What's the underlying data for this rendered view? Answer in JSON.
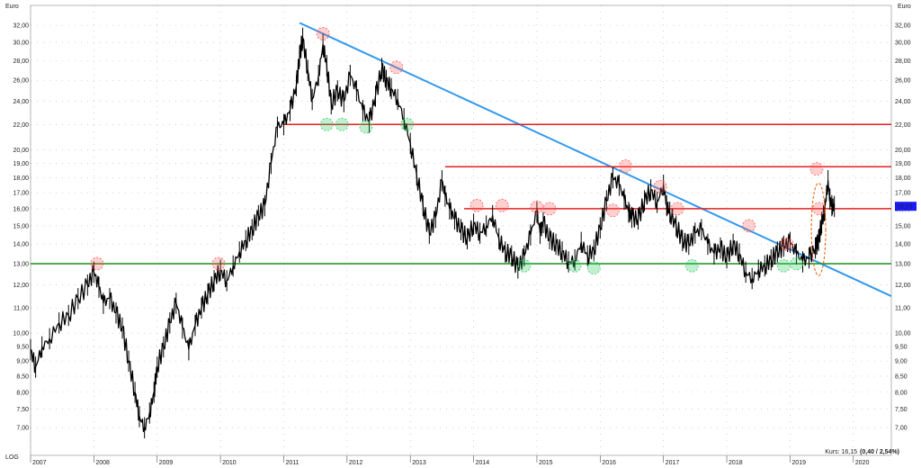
{
  "chart_data": {
    "type": "line",
    "scale": "log",
    "y_unit_label": "Euro",
    "log_label": "LOG",
    "ylim": [
      6.3,
      34.5
    ],
    "y_ticks": [
      7,
      7.5,
      8,
      8.5,
      9,
      9.5,
      10,
      11,
      12,
      13,
      14,
      15,
      16,
      17,
      18,
      19,
      20,
      22,
      24,
      26,
      28,
      30,
      32
    ],
    "y_tick_labels": [
      "7,00",
      "7,50",
      "8,00",
      "8,50",
      "9,00",
      "9,50",
      "10,00",
      "11,00",
      "12,00",
      "13,00",
      "14,00",
      "15,00",
      "16,00",
      "17,00",
      "18,00",
      "19,00",
      "20,00",
      "22,00",
      "24,00",
      "26,00",
      "28,00",
      "30,00",
      "32,00"
    ],
    "x_range": [
      2007.0,
      2020.6
    ],
    "x_tick_labels": [
      "2007",
      "2008",
      "2009",
      "2010",
      "2011",
      "2012",
      "2013",
      "2014",
      "2015",
      "2016",
      "2017",
      "2018",
      "2019",
      "2020"
    ],
    "grid": true,
    "price_series": {
      "x": [
        2007.0,
        2007.08,
        2007.18,
        2007.3,
        2007.45,
        2007.6,
        2007.75,
        2007.9,
        2008.0,
        2008.08,
        2008.15,
        2008.25,
        2008.35,
        2008.45,
        2008.55,
        2008.65,
        2008.72,
        2008.8,
        2008.88,
        2008.95,
        2009.0,
        2009.1,
        2009.2,
        2009.3,
        2009.4,
        2009.5,
        2009.6,
        2009.7,
        2009.8,
        2009.9,
        2010.0,
        2010.1,
        2010.2,
        2010.3,
        2010.4,
        2010.5,
        2010.6,
        2010.7,
        2010.8,
        2010.9,
        2011.0,
        2011.1,
        2011.2,
        2011.25,
        2011.3,
        2011.38,
        2011.45,
        2011.55,
        2011.62,
        2011.68,
        2011.75,
        2011.85,
        2011.95,
        2012.05,
        2012.15,
        2012.25,
        2012.35,
        2012.45,
        2012.55,
        2012.62,
        2012.7,
        2012.8,
        2012.9,
        2013.0,
        2013.1,
        2013.2,
        2013.3,
        2013.4,
        2013.5,
        2013.55,
        2013.62,
        2013.7,
        2013.8,
        2013.9,
        2014.0,
        2014.1,
        2014.2,
        2014.3,
        2014.4,
        2014.5,
        2014.6,
        2014.7,
        2014.8,
        2014.9,
        2015.0,
        2015.05,
        2015.1,
        2015.2,
        2015.3,
        2015.4,
        2015.5,
        2015.6,
        2015.7,
        2015.8,
        2015.9,
        2016.0,
        2016.1,
        2016.2,
        2016.3,
        2016.38,
        2016.45,
        2016.5,
        2016.6,
        2016.7,
        2016.8,
        2016.9,
        2017.0,
        2017.05,
        2017.1,
        2017.2,
        2017.3,
        2017.4,
        2017.5,
        2017.6,
        2017.7,
        2017.8,
        2017.9,
        2018.0,
        2018.1,
        2018.2,
        2018.3,
        2018.4,
        2018.5,
        2018.6,
        2018.7,
        2018.8,
        2018.9,
        2019.0,
        2019.1,
        2019.2,
        2019.3,
        2019.4,
        2019.45,
        2019.5,
        2019.55,
        2019.6,
        2019.63,
        2019.66,
        2019.7
      ],
      "y": [
        9.4,
        8.8,
        9.5,
        9.8,
        10.4,
        10.7,
        11.4,
        12.0,
        12.6,
        11.9,
        11.2,
        11.4,
        10.8,
        10.2,
        9.0,
        8.0,
        7.3,
        7.0,
        7.4,
        8.0,
        8.8,
        9.5,
        10.4,
        11.2,
        10.2,
        9.4,
        10.3,
        11.0,
        11.6,
        12.2,
        12.7,
        12.2,
        12.9,
        13.6,
        14.2,
        14.8,
        15.6,
        16.2,
        19.0,
        21.8,
        22.0,
        23.2,
        25.5,
        28.5,
        30.5,
        27.0,
        24.2,
        26.5,
        29.8,
        27.5,
        23.8,
        25.0,
        24.0,
        26.5,
        25.0,
        23.2,
        22.2,
        24.5,
        27.2,
        26.0,
        25.2,
        24.2,
        22.5,
        20.5,
        18.2,
        16.2,
        14.6,
        15.5,
        17.8,
        16.8,
        16.0,
        15.4,
        14.8,
        14.3,
        15.1,
        14.6,
        15.0,
        15.6,
        14.3,
        13.6,
        13.4,
        12.8,
        13.4,
        14.5,
        15.8,
        14.6,
        15.2,
        14.3,
        14.0,
        13.6,
        13.1,
        13.2,
        14.1,
        13.4,
        13.7,
        14.9,
        16.5,
        18.0,
        17.5,
        16.6,
        15.8,
        15.5,
        15.4,
        16.5,
        17.2,
        16.4,
        17.5,
        16.2,
        15.8,
        15.0,
        14.2,
        14.0,
        14.6,
        14.8,
        14.0,
        13.5,
        13.8,
        13.3,
        14.0,
        13.5,
        12.6,
        12.3,
        12.7,
        12.9,
        13.2,
        13.6,
        13.9,
        14.1,
        13.5,
        13.1,
        13.3,
        13.8,
        14.2,
        15.2,
        16.0,
        17.8,
        16.6,
        16.2,
        16.15
      ]
    },
    "lines": [
      {
        "kind": "trendline",
        "color": "#3399ee",
        "x": [
          2011.25,
          2020.6
        ],
        "y": [
          32.3,
          11.5
        ]
      },
      {
        "kind": "resistance",
        "color": "#e02020",
        "x": [
          2011.0,
          2020.6
        ],
        "y": [
          22.0,
          22.0
        ]
      },
      {
        "kind": "resistance",
        "color": "#e02020",
        "x": [
          2013.55,
          2020.6
        ],
        "y": [
          18.75,
          18.75
        ]
      },
      {
        "kind": "resistance",
        "color": "#e02020",
        "x": [
          2013.85,
          2020.6
        ],
        "y": [
          16.0,
          16.0
        ]
      },
      {
        "kind": "support",
        "color": "#1a8f1a",
        "x": [
          2007.0,
          2020.6
        ],
        "y": [
          13.0,
          13.0
        ]
      }
    ],
    "red_markers": [
      [
        2008.05,
        13.0
      ],
      [
        2009.97,
        13.0
      ],
      [
        2011.62,
        31.0
      ],
      [
        2012.78,
        27.3
      ],
      [
        2014.05,
        16.2
      ],
      [
        2014.45,
        16.2
      ],
      [
        2015.0,
        16.1
      ],
      [
        2015.2,
        16.0
      ],
      [
        2016.2,
        15.9
      ],
      [
        2016.4,
        18.8
      ],
      [
        2016.95,
        17.4
      ],
      [
        2017.22,
        16.0
      ],
      [
        2018.35,
        15.0
      ],
      [
        2018.95,
        14.0
      ],
      [
        2019.42,
        18.6
      ],
      [
        2019.46,
        16.0
      ]
    ],
    "green_markers": [
      [
        2011.68,
        22.0
      ],
      [
        2011.92,
        22.0
      ],
      [
        2012.3,
        21.8
      ],
      [
        2012.95,
        22.0
      ],
      [
        2014.8,
        12.9
      ],
      [
        2015.6,
        12.9
      ],
      [
        2015.9,
        12.8
      ],
      [
        2017.45,
        12.9
      ],
      [
        2018.9,
        12.9
      ],
      [
        2019.1,
        13.0
      ]
    ],
    "price_tag": "16,15",
    "footer": {
      "kurs_prefix": "Kurs: 16,15",
      "kurs_change": "(0,40 / 2,54%)"
    },
    "colors": {
      "price": "#000000",
      "tag_bg": "#1a1aff",
      "tag_fg": "#ffffff",
      "red_marker": "#ff5555",
      "green_marker": "#33cc66"
    }
  }
}
